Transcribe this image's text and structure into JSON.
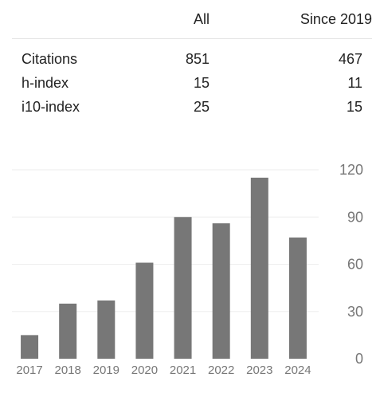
{
  "stats": {
    "columns": [
      "All",
      "Since 2019"
    ],
    "rows": [
      {
        "label": "Citations",
        "all": "851",
        "since": "467"
      },
      {
        "label": "h-index",
        "all": "15",
        "since": "11"
      },
      {
        "label": "i10-index",
        "all": "25",
        "since": "15"
      }
    ]
  },
  "chart_data": {
    "type": "bar",
    "categories": [
      "2017",
      "2018",
      "2019",
      "2020",
      "2021",
      "2022",
      "2023",
      "2024"
    ],
    "values": [
      15,
      35,
      37,
      61,
      90,
      86,
      115,
      77
    ],
    "yticks": [
      0,
      30,
      60,
      90,
      120
    ],
    "ylim": [
      0,
      120
    ],
    "grid": true,
    "bar_color": "#777777",
    "grid_color": "#eeeeee",
    "tick_color": "#777777"
  }
}
